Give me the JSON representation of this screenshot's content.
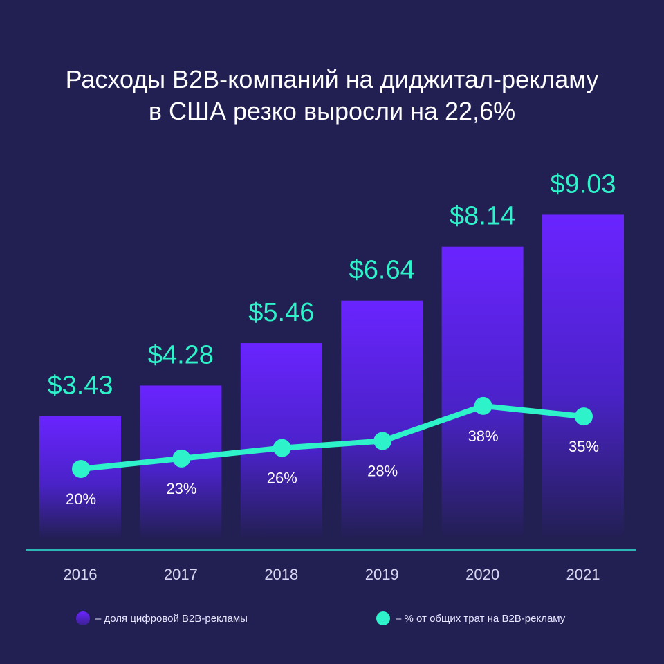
{
  "title_lines": [
    "Расходы B2B-компаний на диджитал-рекламу",
    "в США резко выросли на 22,6%"
  ],
  "colors": {
    "background": "#221f52",
    "bar_top": "#6a24ff",
    "line": "#2ef2c9",
    "axis": "#2bb7b3"
  },
  "chart_data": {
    "type": "bar+line",
    "categories": [
      "2016",
      "2017",
      "2018",
      "2019",
      "2020",
      "2021"
    ],
    "series": [
      {
        "name": "– доля цифровой B2B-рекламы",
        "type": "bar",
        "values": [
          3.43,
          4.28,
          5.46,
          6.64,
          8.14,
          9.03
        ],
        "labels": [
          "$3.43",
          "$4.28",
          "$5.46",
          "$6.64",
          "$8.14",
          "$9.03"
        ]
      },
      {
        "name": "– % от общих трат на B2B-рекламу",
        "type": "line",
        "values": [
          20,
          23,
          26,
          28,
          38,
          35
        ],
        "labels": [
          "20%",
          "23%",
          "26%",
          "28%",
          "38%",
          "35%"
        ]
      }
    ],
    "legend": "bottom"
  }
}
